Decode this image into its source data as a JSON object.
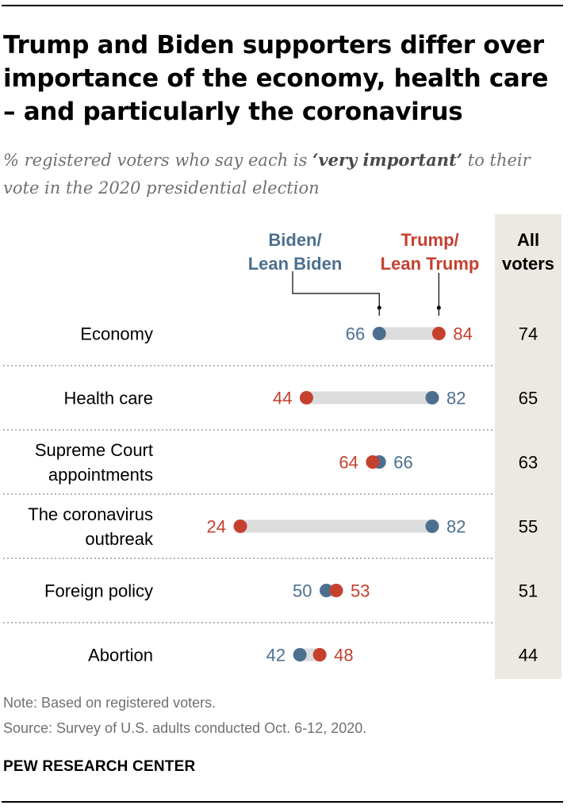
{
  "title": "Trump and Biden supporters differ over importance of the economy, health care – and particularly the coronavirus",
  "subtitle": {
    "prefix": "% registered voters who say each is ",
    "emphasis": "‘very important’",
    "suffix": " to their vote in the 2020 presidential election"
  },
  "colors": {
    "biden": "#4d6f8f",
    "trump": "#c5402f",
    "bar": "#dcdcdc",
    "column_bg": "#ece9e2",
    "divider": "#888888"
  },
  "chart_data": {
    "type": "dot-range",
    "legend": {
      "biden": [
        "Biden/",
        "Lean Biden"
      ],
      "trump": [
        "Trump/",
        "Lean Trump"
      ],
      "all": [
        "All",
        "voters"
      ]
    },
    "categories": [
      {
        "label": [
          "Economy"
        ],
        "biden": 66,
        "trump": 84,
        "all": 74
      },
      {
        "label": [
          "Health care"
        ],
        "biden": 82,
        "trump": 44,
        "all": 65
      },
      {
        "label": [
          "Supreme Court",
          "appointments"
        ],
        "biden": 66,
        "trump": 64,
        "all": 63
      },
      {
        "label": [
          "The coronavirus",
          "outbreak"
        ],
        "biden": 82,
        "trump": 24,
        "all": 55
      },
      {
        "label": [
          "Foreign policy"
        ],
        "biden": 50,
        "trump": 53,
        "all": 51
      },
      {
        "label": [
          "Abortion"
        ],
        "biden": 42,
        "trump": 48,
        "all": 44
      }
    ]
  },
  "footer": {
    "note": "Note: Based on registered voters.",
    "source": "Source: Survey of U.S. adults conducted Oct. 6-12, 2020.",
    "org": "PEW RESEARCH CENTER"
  }
}
